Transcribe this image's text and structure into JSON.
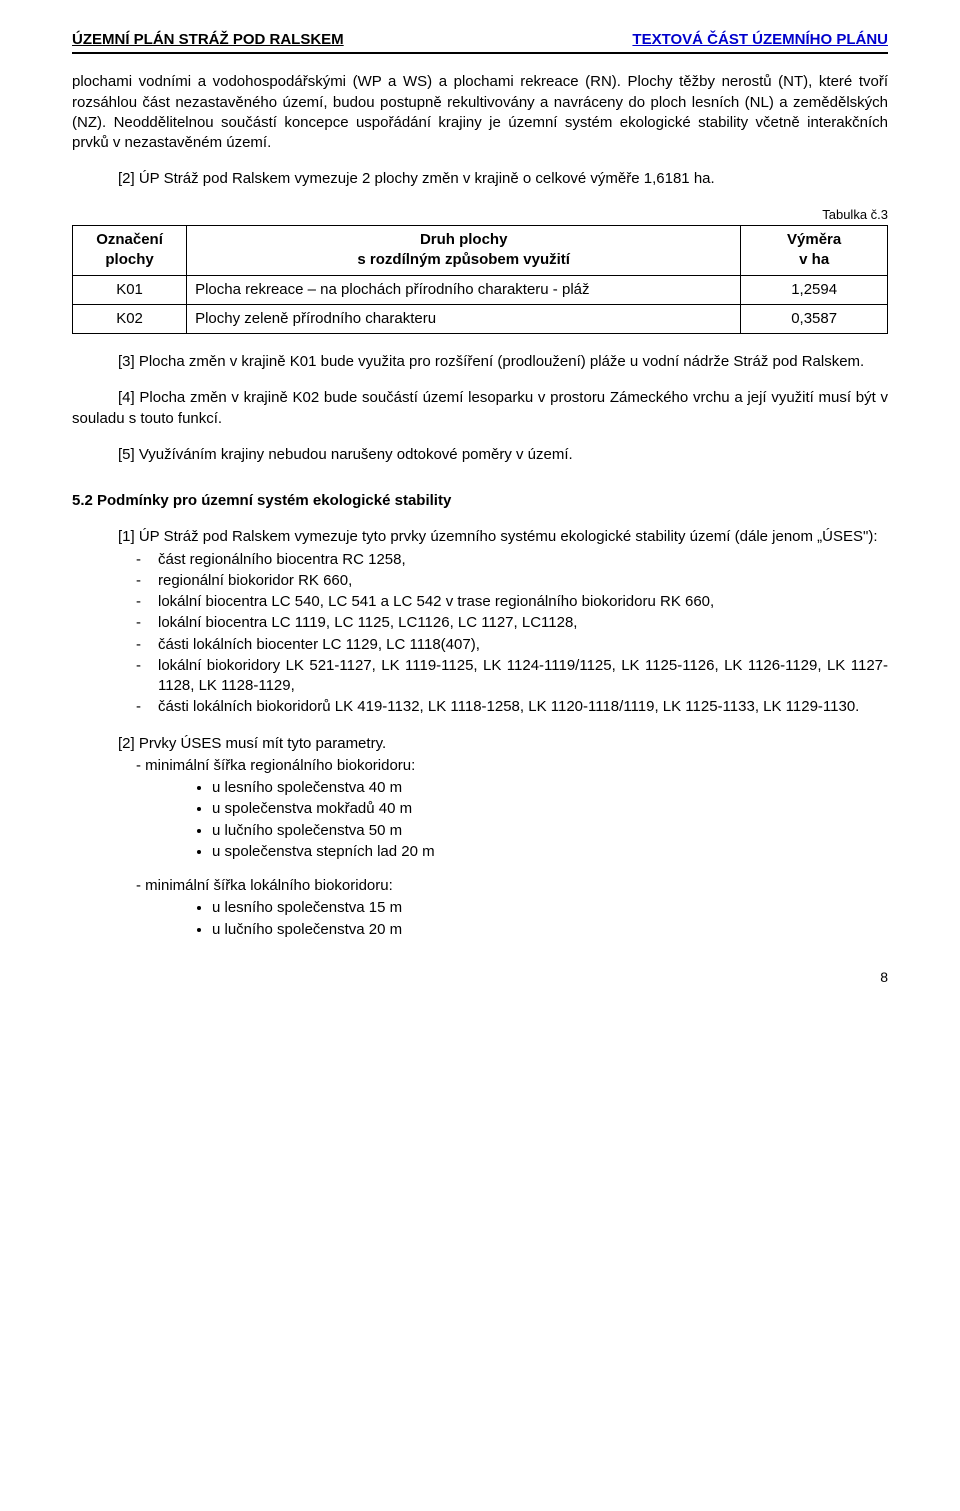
{
  "header": {
    "left": "ÚZEMNÍ PLÁN STRÁŽ POD RALSKEM",
    "right": "TEXTOVÁ ČÁST ÚZEMNÍHO PLÁNU"
  },
  "p1": "plochami vodními a vodohospodářskými (WP a WS) a plochami rekreace (RN). Plochy těžby nerostů (NT), které tvoří rozsáhlou část nezastavěného území, budou postupně rekultivovány a navráceny do ploch lesních (NL) a zemědělských (NZ). Neoddělitelnou součástí koncepce uspořádání krajiny je územní systém ekologické stability včetně interakčních prvků v nezastavěném území.",
  "p2": "[2] ÚP Stráž pod Ralskem vymezuje 2 plochy změn v krajině o celkové výměře 1,6181 ha.",
  "table": {
    "caption": "Tabulka č.3",
    "columns": [
      "Označení plochy",
      "Druh plochy\ns rozdílným způsobem využití",
      "Výměra\nv ha"
    ],
    "rows": [
      [
        "K01",
        "Plocha rekreace – na plochách přírodního charakteru - pláž",
        "1,2594"
      ],
      [
        "K02",
        "Plochy zeleně přírodního charakteru",
        "0,3587"
      ]
    ],
    "col_widths": [
      "14%",
      "68%",
      "18%"
    ]
  },
  "p3": "[3] Plocha změn v krajině K01 bude využita pro rozšíření (prodloužení) pláže u vodní nádrže Stráž pod Ralskem.",
  "p4": "[4] Plocha změn v krajině K02 bude součástí území lesoparku v prostoru Zámeckého vrchu a její využití musí být v souladu s touto funkcí.",
  "p5": "[5] Využíváním krajiny nebudou narušeny odtokové poměry v území.",
  "section52": "5.2 Podmínky pro územní systém ekologické stability",
  "p6": "[1] ÚP Stráž pod Ralskem vymezuje tyto prvky územního systému ekologické stability území (dále jenom „ÚSES\"):",
  "uses_list": [
    "část regionálního biocentra RC 1258,",
    "regionální biokoridor RK 660,",
    "lokální biocentra LC 540, LC 541 a LC 542 v trase regionálního biokoridoru RK 660,",
    "lokální biocentra LC 1119, LC 1125, LC1126, LC 1127, LC1128,",
    "části lokálních biocenter LC 1129, LC 1118(407),",
    "lokální biokoridory LK 521-1127, LK 1119-1125, LK 1124-1119/1125, LK 1125-1126, LK 1126-1129, LK 1127-1128, LK 1128-1129,",
    "části lokálních biokoridorů LK 419-1132, LK 1118-1258, LK 1120-1118/1119, LK 1125-1133, LK 1129-1130."
  ],
  "p7": "[2] Prvky ÚSES musí mít tyto parametry.",
  "param1_label": "minimální šířka regionálního biokoridoru:",
  "param1_items": [
    "u lesního společenstva 40 m",
    "u společenstva mokřadů 40 m",
    "u lučního společenstva 50 m",
    "u společenstva stepních lad 20 m"
  ],
  "param2_label": "minimální šířka lokálního biokoridoru:",
  "param2_items": [
    "u lesního společenstva 15 m",
    "u lučního společenstva 20 m"
  ],
  "page_number": "8"
}
